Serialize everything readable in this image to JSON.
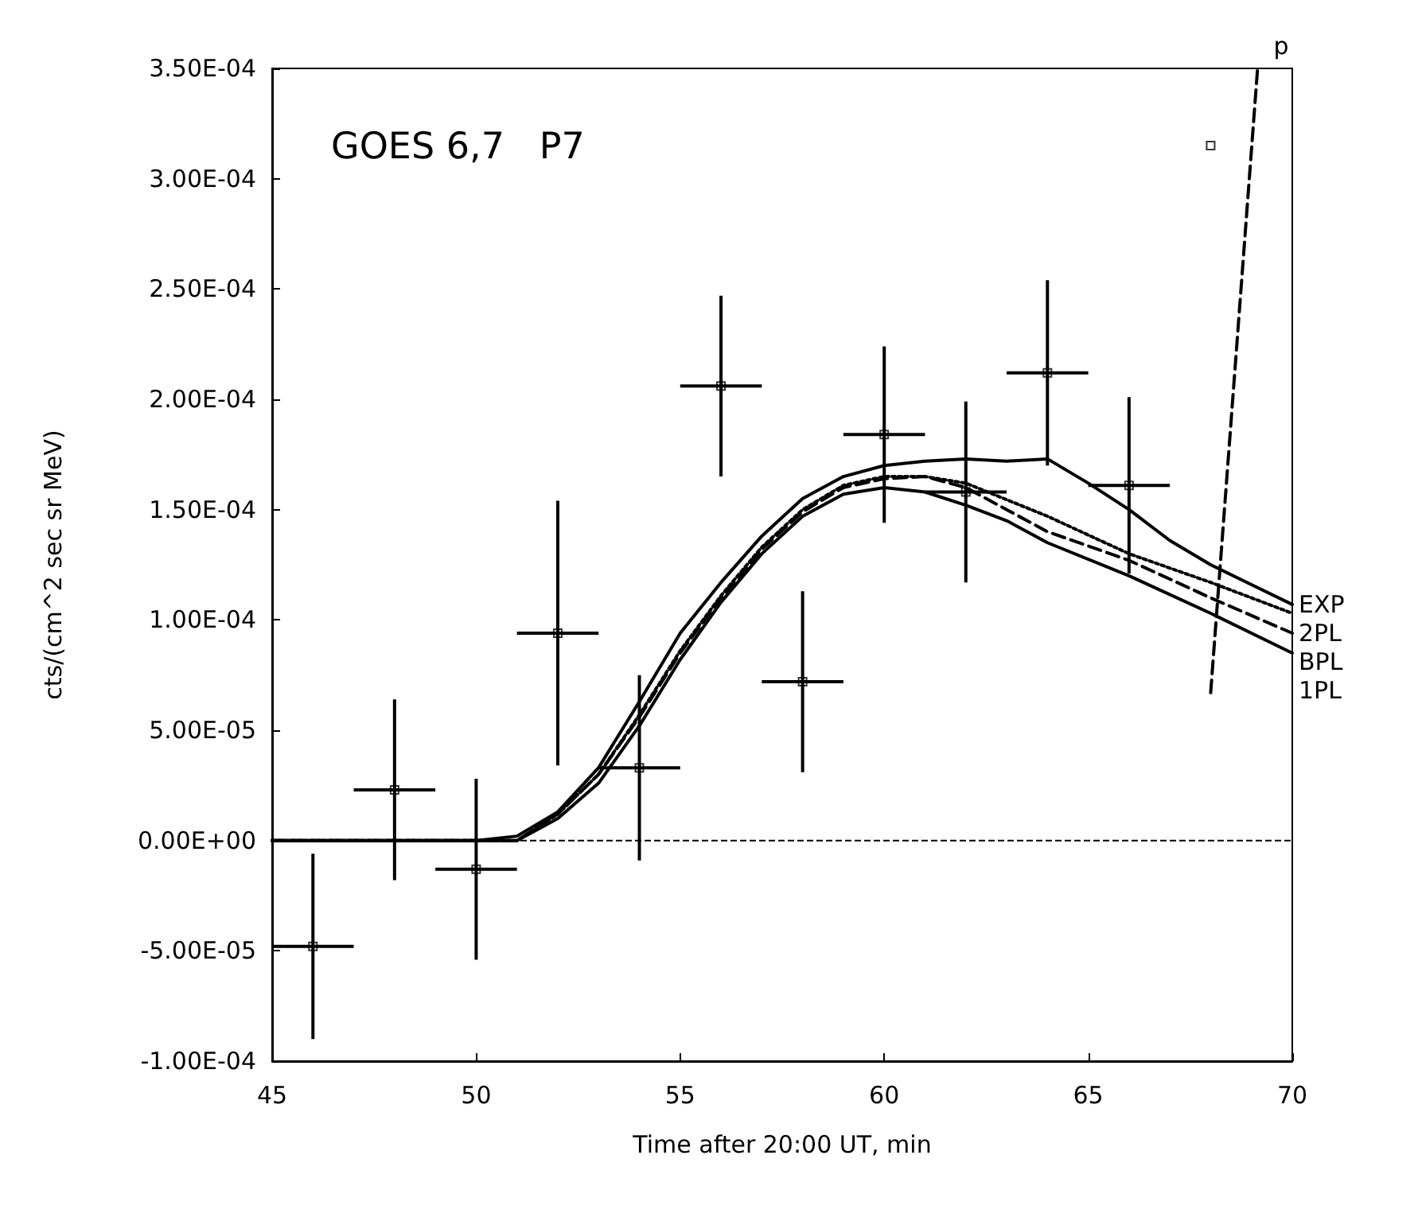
{
  "chart_data": {
    "type": "line",
    "title": "GOES 6,7   P7",
    "xlabel": "Time after 20:00 UT, min",
    "ylabel": "cts/(cm^2 sec sr MeV)",
    "xlim": [
      45,
      70
    ],
    "xticks": [
      45,
      50,
      55,
      60,
      65,
      70
    ],
    "ylim": [
      -0.0001,
      0.00035
    ],
    "yticks": [
      {
        "value": -0.0001,
        "label": "-1.00E-04"
      },
      {
        "value": -5e-05,
        "label": "-5.00E-05"
      },
      {
        "value": 0,
        "label": "0.00E+00"
      },
      {
        "value": 5e-05,
        "label": "5.00E-05"
      },
      {
        "value": 0.0001,
        "label": "1.00E-04"
      },
      {
        "value": 0.00015,
        "label": "1.50E-04"
      },
      {
        "value": 0.0002,
        "label": "2.00E-04"
      },
      {
        "value": 0.00025,
        "label": "2.50E-04"
      },
      {
        "value": 0.0003,
        "label": "3.00E-04"
      },
      {
        "value": 0.00035,
        "label": "3.50E-04"
      }
    ],
    "ref_lines": [
      {
        "axis": "y",
        "value": 0,
        "color": "#000000",
        "line_style": "dashed"
      }
    ],
    "series": [
      {
        "type": "scatter",
        "color": "#000000",
        "marker": "square",
        "x": [
          46,
          48,
          50,
          52,
          54,
          56,
          58,
          60,
          62,
          64,
          66,
          68
        ],
        "values": [
          -4.8e-05,
          2.3e-05,
          -1.3e-05,
          9.4e-05,
          3.3e-05,
          0.000206,
          7.2e-05,
          0.000184,
          0.000158,
          0.000212,
          0.000161,
          0.000315
        ],
        "errors": [
          4.2e-05,
          4.1e-05,
          4.1e-05,
          6e-05,
          4.2e-05,
          4.1e-05,
          4.1e-05,
          4e-05,
          [
            0.000117,
            0.000199
          ],
          4.2e-05,
          4e-05,
          null
        ],
        "xerrors": [
          1,
          1,
          1,
          1,
          1,
          1,
          1,
          1,
          1,
          1,
          1,
          null
        ]
      },
      {
        "name": "EXP",
        "color": "#000000",
        "line_style": "solid",
        "x": [
          45,
          50,
          51,
          52,
          53,
          54,
          55,
          56,
          57,
          58,
          59,
          60,
          61,
          62,
          63,
          64,
          65,
          66,
          67,
          68,
          69,
          70
        ],
        "values": [
          0,
          0,
          2e-06,
          1.3e-05,
          3.3e-05,
          6.3e-05,
          9.4e-05,
          0.000117,
          0.000138,
          0.000155,
          0.000165,
          0.00017,
          0.000172,
          0.000173,
          0.000172,
          0.000173,
          0.000162,
          0.00015,
          0.000136,
          0.000125,
          0.000116,
          0.000107
        ]
      },
      {
        "name": "2PL",
        "color": "#000000",
        "line_style": "dotted",
        "x": [
          45,
          51,
          52,
          53,
          54,
          55,
          56,
          57,
          58,
          59,
          60,
          61,
          62,
          64,
          66,
          68,
          70
        ],
        "values": [
          0,
          0,
          1.2e-05,
          3e-05,
          5.7e-05,
          8.6e-05,
          0.000111,
          0.000133,
          0.00015,
          0.000161,
          0.000165,
          0.000165,
          0.000162,
          0.000147,
          0.00013,
          0.000117,
          0.000103
        ]
      },
      {
        "name": "BPL",
        "color": "#000000",
        "line_style": "dashed",
        "x": [
          45,
          51,
          52,
          53,
          54,
          55,
          56,
          57,
          58,
          59,
          60,
          61,
          62,
          63,
          64,
          66,
          68,
          70
        ],
        "values": [
          0,
          0,
          1.2e-05,
          3e-05,
          5.6e-05,
          8.5e-05,
          0.00011,
          0.000132,
          0.000149,
          0.00016,
          0.000164,
          0.000165,
          0.00016,
          0.00015,
          0.00014,
          0.000127,
          0.00011,
          9.4e-05
        ]
      },
      {
        "name": "1PL",
        "color": "#000000",
        "line_style": "solid",
        "x": [
          45,
          51,
          52,
          53,
          54,
          55,
          56,
          57,
          58,
          59,
          60,
          61,
          62,
          63,
          64,
          66,
          68,
          70
        ],
        "values": [
          0,
          0,
          1e-05,
          2.6e-05,
          5.2e-05,
          8.2e-05,
          0.000108,
          0.00013,
          0.000147,
          0.000157,
          0.00016,
          0.000158,
          0.000152,
          0.000145,
          0.000135,
          0.00012,
          0.000103,
          8.5e-05
        ]
      },
      {
        "name": "p",
        "color": "#000000",
        "line_style": "dashed",
        "x": [
          68,
          69.15
        ],
        "values": [
          6.7e-05,
          0.00035
        ]
      }
    ]
  }
}
